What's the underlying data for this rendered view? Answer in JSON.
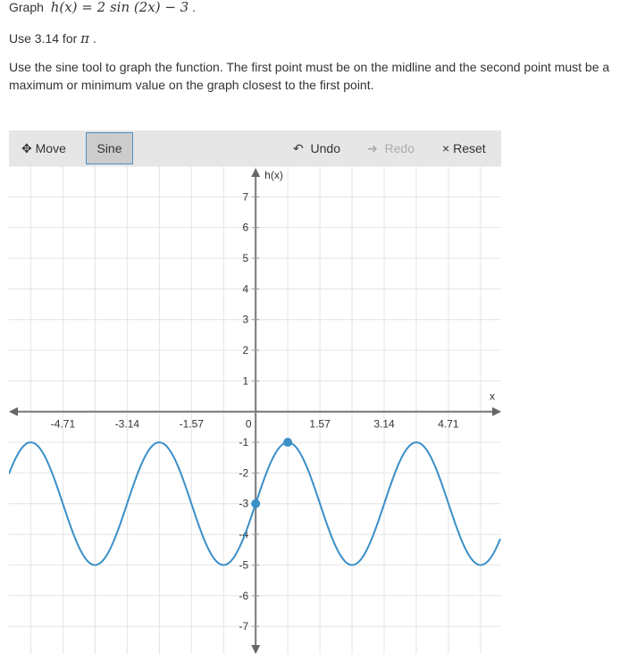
{
  "prompt": {
    "graph_label": "Graph",
    "function": "h(x) = 2 sin (2x) − 3",
    "pi_note_prefix": "Use 3.14 for",
    "pi_symbol": "π",
    "instructions": "Use the sine tool to graph the function. The first point must be on the midline and the second point must be a maximum or minimum value on the graph closest to the first point."
  },
  "toolbar": {
    "move": "Move",
    "sine": "Sine",
    "undo": "Undo",
    "redo": "Redo",
    "reset": "Reset",
    "sine_selected": true,
    "redo_disabled": true
  },
  "chart_data": {
    "type": "line",
    "xlabel": "x",
    "ylabel": "h(x)",
    "xlim": [
      -6.03,
      6.0
    ],
    "ylim": [
      -7.9,
      8.0
    ],
    "x_ticks": [
      "-4.71",
      "-3.14",
      "-1.57",
      "0",
      "1.57",
      "3.14",
      "4.71"
    ],
    "x_tick_values": [
      -4.71,
      -3.14,
      -1.57,
      0,
      1.57,
      3.14,
      4.71
    ],
    "y_ticks": [
      7,
      6,
      5,
      4,
      3,
      2,
      1,
      -1,
      -2,
      -3,
      -4,
      -5,
      -6,
      -7
    ],
    "x_grid_step": 0.785,
    "y_grid_step": 1,
    "grid": true,
    "series": [
      {
        "function": "2sin(2x)-3",
        "amplitude": 2,
        "b": 2,
        "midline": -3,
        "color": "#3a8fc7"
      }
    ],
    "points": [
      {
        "x": 0,
        "y": -3
      },
      {
        "x": 0.785,
        "y": -1
      }
    ]
  }
}
